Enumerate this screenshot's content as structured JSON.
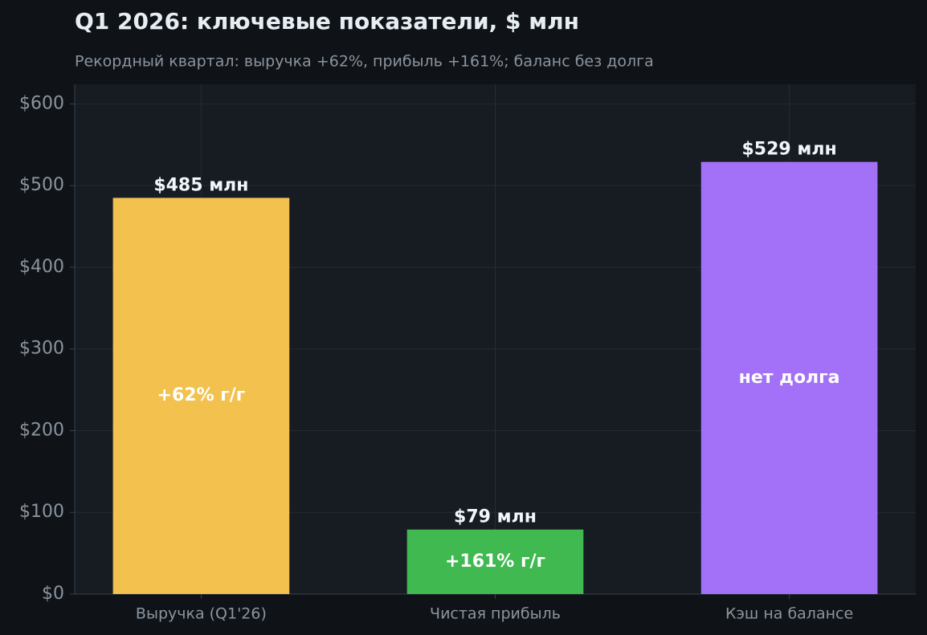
{
  "chart_data": {
    "type": "bar",
    "title": "Q1 2026: ключевые показатели, $ млн",
    "subtitle": "Рекордный квартал: выручка +62%, прибыль +161%; баланс без долга",
    "categories": [
      "Выручка (Q1'26)",
      "Чистая прибыль",
      "Кэш на балансе"
    ],
    "values": [
      485,
      79,
      529
    ],
    "value_labels": [
      "$485 млн",
      "$79 млн",
      "$529 млн"
    ],
    "annotations": [
      "+62% г/г",
      "+161% г/г",
      "нет долга"
    ],
    "colors": [
      "#f2c14e",
      "#3fb950",
      "#a371f7"
    ],
    "ylim": [
      0,
      624
    ],
    "yticks": [
      {
        "value": 0,
        "label": "$0"
      },
      {
        "value": 100,
        "label": "$100"
      },
      {
        "value": 200,
        "label": "$200"
      },
      {
        "value": 300,
        "label": "$300"
      },
      {
        "value": 400,
        "label": "$400"
      },
      {
        "value": 500,
        "label": "$500"
      },
      {
        "value": 600,
        "label": "$600"
      }
    ],
    "grid": true
  }
}
